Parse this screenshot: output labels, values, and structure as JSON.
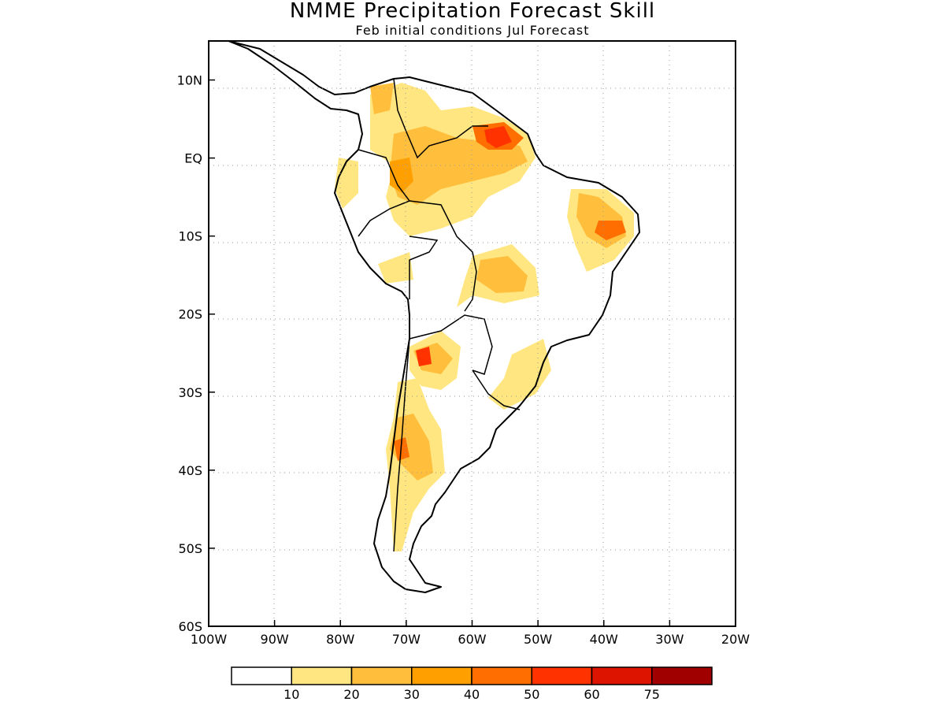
{
  "title": "NMME Precipitation Forecast Skill",
  "subtitle": "Feb initial conditions  Jul Forecast",
  "map": {
    "region": "South America",
    "lon_range": [
      -100,
      -20
    ],
    "lat_range": [
      -60,
      15
    ],
    "grid": true,
    "lon_ticks": [
      "100W",
      "90W",
      "80W",
      "70W",
      "60W",
      "50W",
      "40W",
      "30W",
      "20W"
    ],
    "lat_ticks": [
      "10N",
      "EQ",
      "10S",
      "20S",
      "30S",
      "40S",
      "50S",
      "60S"
    ],
    "lon_tick_values": [
      -100,
      -90,
      -80,
      -70,
      -60,
      -50,
      -40,
      -30,
      -20
    ],
    "lat_tick_values": [
      10,
      0,
      -10,
      -20,
      -30,
      -40,
      -50,
      -60
    ]
  },
  "colorbar": {
    "colors": [
      "#ffffff",
      "#ffe680",
      "#ffbe3c",
      "#ffa000",
      "#ff6e00",
      "#ff3200",
      "#dc1400",
      "#a00000"
    ],
    "labels": [
      "10",
      "20",
      "30",
      "40",
      "50",
      "60",
      "75"
    ]
  }
}
